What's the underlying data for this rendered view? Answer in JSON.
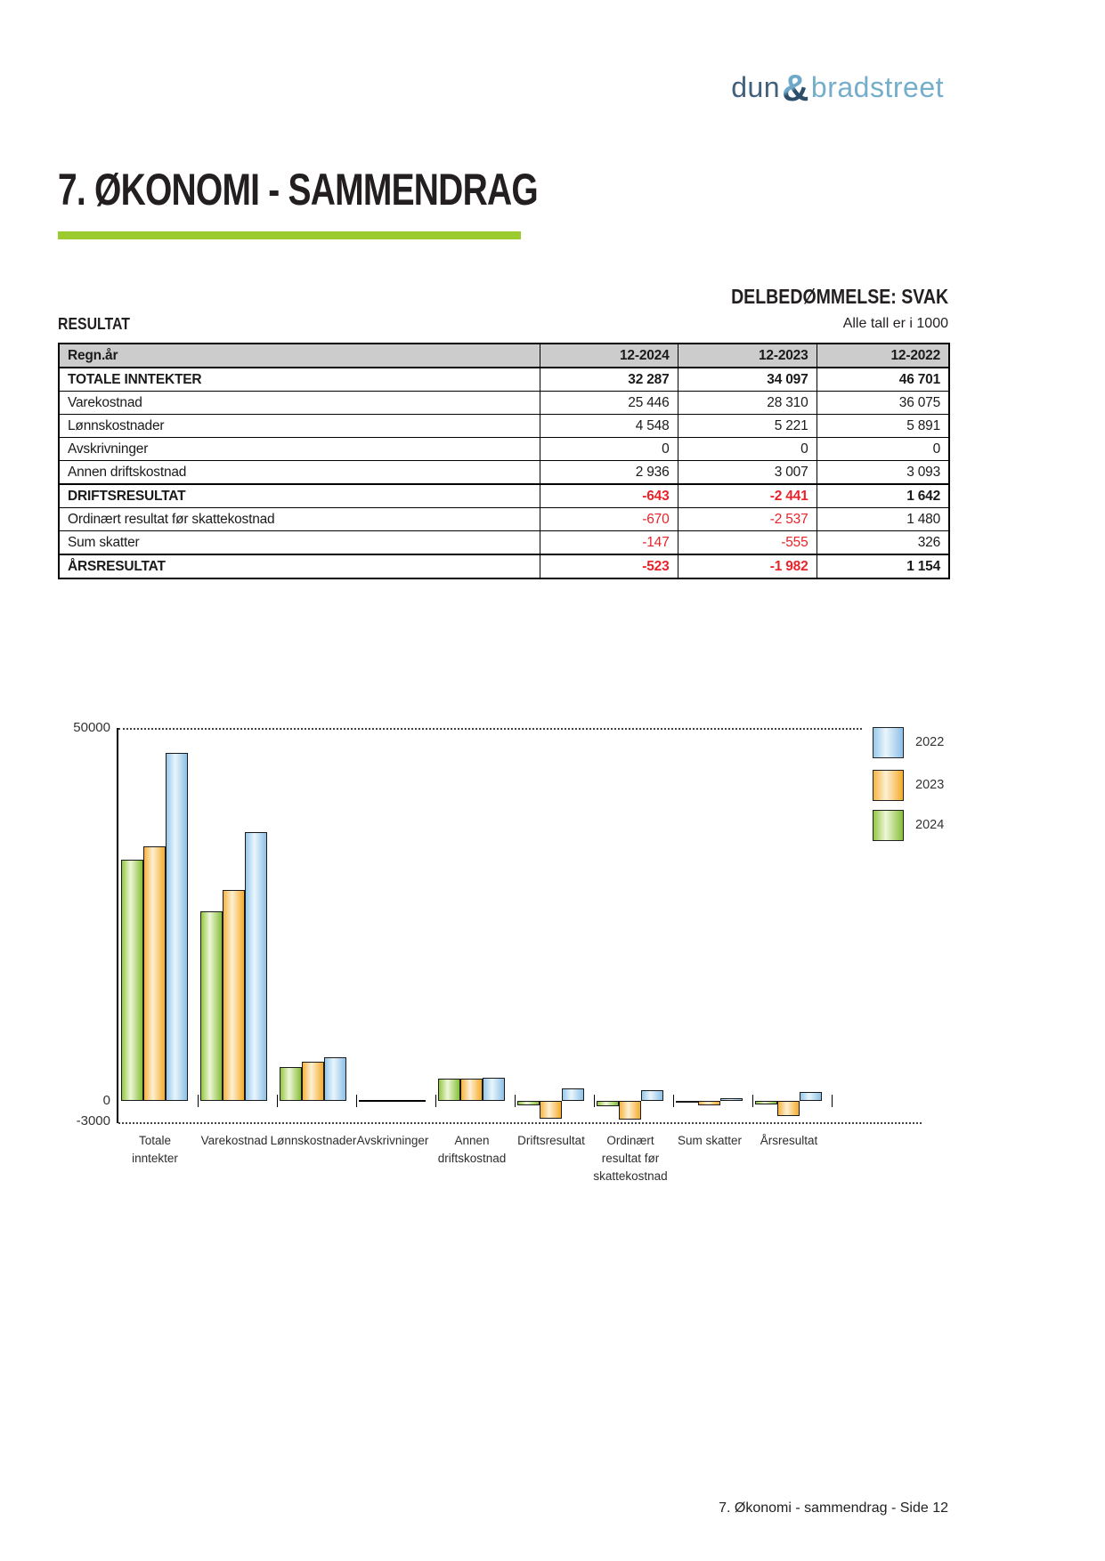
{
  "logo": {
    "part1": "dun",
    "amp": "&",
    "part2": "bradstreet"
  },
  "page": {
    "title": "7. ØKONOMI - SAMMENDRAG",
    "footer": "7. Økonomi - sammendrag - Side 12",
    "accent_color": "#9bcb2e",
    "negative_color": "#e8232a"
  },
  "assessment": {
    "label": "DELBEDØMMELSE: SVAK"
  },
  "result_section": {
    "heading": "RESULTAT",
    "units_note": "Alle tall er i 1000"
  },
  "table": {
    "headers": [
      "Regn.år",
      "12-2024",
      "12-2023",
      "12-2022"
    ],
    "rows": [
      {
        "label": "TOTALE INNTEKTER",
        "bold": true,
        "thick_top": false,
        "values": [
          "32 287",
          "34 097",
          "46 701"
        ]
      },
      {
        "label": "Varekostnad",
        "bold": false,
        "thick_top": false,
        "values": [
          "25 446",
          "28 310",
          "36 075"
        ]
      },
      {
        "label": "Lønnskostnader",
        "bold": false,
        "thick_top": false,
        "values": [
          "4 548",
          "5 221",
          "5 891"
        ]
      },
      {
        "label": "Avskrivninger",
        "bold": false,
        "thick_top": false,
        "values": [
          "0",
          "0",
          "0"
        ]
      },
      {
        "label": "Annen driftskostnad",
        "bold": false,
        "thick_top": false,
        "values": [
          "2 936",
          "3 007",
          "3 093"
        ]
      },
      {
        "label": "DRIFTSRESULTAT",
        "bold": true,
        "thick_top": true,
        "values": [
          "-643",
          "-2 441",
          "1 642"
        ]
      },
      {
        "label": "Ordinært resultat før skattekostnad",
        "bold": false,
        "thick_top": false,
        "values": [
          "-670",
          "-2 537",
          "1 480"
        ]
      },
      {
        "label": "Sum skatter",
        "bold": false,
        "thick_top": false,
        "values": [
          "-147",
          "-555",
          "326"
        ]
      },
      {
        "label": "ÅRSRESULTAT",
        "bold": true,
        "thick_top": true,
        "values": [
          "-523",
          "-1 982",
          "1 154"
        ]
      }
    ]
  },
  "chart_data": {
    "type": "bar",
    "title": "",
    "xlabel": "",
    "ylabel": "",
    "ylim": [
      -3000,
      50000
    ],
    "grid": "dotted lines at 50000 and -3000 only",
    "legend_position": "right",
    "y_ticks": [
      "50000",
      "0",
      "-3000"
    ],
    "categories": [
      {
        "label": "Totale inntekter",
        "lines": [
          "Totale",
          "inntekter"
        ]
      },
      {
        "label": "Varekostnad",
        "lines": [
          "Varekostnad"
        ]
      },
      {
        "label": "Lønnskostnader",
        "lines": [
          "Lønnskostnader"
        ]
      },
      {
        "label": "Avskrivninger",
        "lines": [
          "Avskrivninger"
        ]
      },
      {
        "label": "Annen driftskostnad",
        "lines": [
          "Annen",
          "driftskostnad"
        ]
      },
      {
        "label": "Driftsresultat",
        "lines": [
          "Driftsresultat"
        ]
      },
      {
        "label": "Ordinært resultat før skattekostnad",
        "lines": [
          "Ordinært",
          "resultat før",
          "skattekostnad"
        ]
      },
      {
        "label": "Sum skatter",
        "lines": [
          "Sum skatter"
        ]
      },
      {
        "label": "Årsresultat",
        "lines": [
          "Årsresultat"
        ]
      }
    ],
    "series": [
      {
        "name": "2024",
        "color_key": "green",
        "values": [
          32287,
          25446,
          4548,
          0,
          2936,
          -643,
          -670,
          -147,
          -523
        ]
      },
      {
        "name": "2023",
        "color_key": "orange",
        "values": [
          34097,
          28310,
          5221,
          0,
          3007,
          -2441,
          -2537,
          -555,
          -1982
        ]
      },
      {
        "name": "2022",
        "color_key": "blue",
        "values": [
          46701,
          36075,
          5891,
          0,
          3093,
          1642,
          1480,
          326,
          1154
        ]
      }
    ],
    "legend": [
      {
        "label": "2022",
        "color_key": "blue",
        "color": "#92c5e8"
      },
      {
        "label": "2023",
        "color_key": "orange",
        "color": "#f7b733"
      },
      {
        "label": "2024",
        "color_key": "green",
        "color": "#8cc63f"
      }
    ]
  }
}
